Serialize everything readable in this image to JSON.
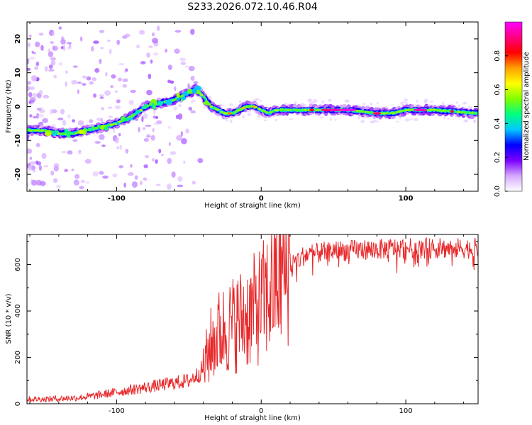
{
  "title": "S233.2026.072.10.46.R04",
  "chart_data": [
    {
      "type": "heatmap",
      "xlabel": "Height of straight line (km)",
      "ylabel": "Frequency (Hz)",
      "xlim": [
        -162,
        150
      ],
      "ylim": [
        -25,
        25
      ],
      "xticks": [
        -100,
        0,
        100
      ],
      "yticks": [
        -20,
        -10,
        0,
        10,
        20
      ],
      "colorbar": {
        "label": "Normalized spectral amplitude",
        "range": [
          0,
          1
        ],
        "ticks": [
          "0.0",
          "0.2",
          "0.4",
          "0.6",
          "0.8"
        ],
        "colors": [
          "#ffffff",
          "#d6a8ff",
          "#7a00ff",
          "#0000ff",
          "#00c8ff",
          "#00ff80",
          "#80ff00",
          "#ffff00",
          "#ffa000",
          "#ff0000",
          "#ff0080",
          "#ff00ff"
        ]
      },
      "ridge": {
        "x": [
          -162,
          -150,
          -140,
          -130,
          -120,
          -110,
          -100,
          -90,
          -80,
          -70,
          -60,
          -50,
          -45,
          -40,
          -35,
          -30,
          -25,
          -20,
          -15,
          -10,
          -5,
          0,
          5,
          10,
          20,
          40,
          60,
          80,
          90,
          100,
          120,
          150
        ],
        "freq": [
          -7,
          -7,
          -8,
          -8,
          -7,
          -6,
          -5,
          -3,
          0,
          1,
          2,
          4,
          5,
          3,
          0,
          -1,
          -2,
          -2,
          -1,
          0,
          0,
          -1,
          -2,
          -1,
          -1,
          -1,
          -1,
          -2,
          -2,
          -1,
          -1,
          -2
        ]
      }
    },
    {
      "type": "line",
      "xlabel": "Height of straight line (km)",
      "ylabel": "SNR (10 * v/v)",
      "xlim": [
        -162,
        150
      ],
      "ylim": [
        0,
        730
      ],
      "xticks": [
        -100,
        0,
        100
      ],
      "yticks": [
        0,
        200,
        400,
        600
      ],
      "series": [
        {
          "name": "SNR",
          "color": "#e8282a",
          "x": [
            -162,
            -150,
            -140,
            -130,
            -120,
            -110,
            -100,
            -90,
            -80,
            -70,
            -60,
            -50,
            -45,
            -40,
            -35,
            -30,
            -25,
            -20,
            -15,
            -10,
            -5,
            0,
            5,
            10,
            15,
            20,
            25,
            30,
            40,
            50,
            60,
            70,
            80,
            90,
            100,
            110,
            120,
            130,
            140,
            150
          ],
          "y": [
            20,
            20,
            22,
            25,
            30,
            40,
            50,
            60,
            70,
            80,
            90,
            100,
            120,
            150,
            250,
            300,
            320,
            340,
            360,
            380,
            400,
            430,
            470,
            520,
            570,
            600,
            620,
            640,
            650,
            660,
            660,
            665,
            665,
            670,
            670,
            670,
            670,
            670,
            670,
            670
          ]
        }
      ]
    }
  ]
}
